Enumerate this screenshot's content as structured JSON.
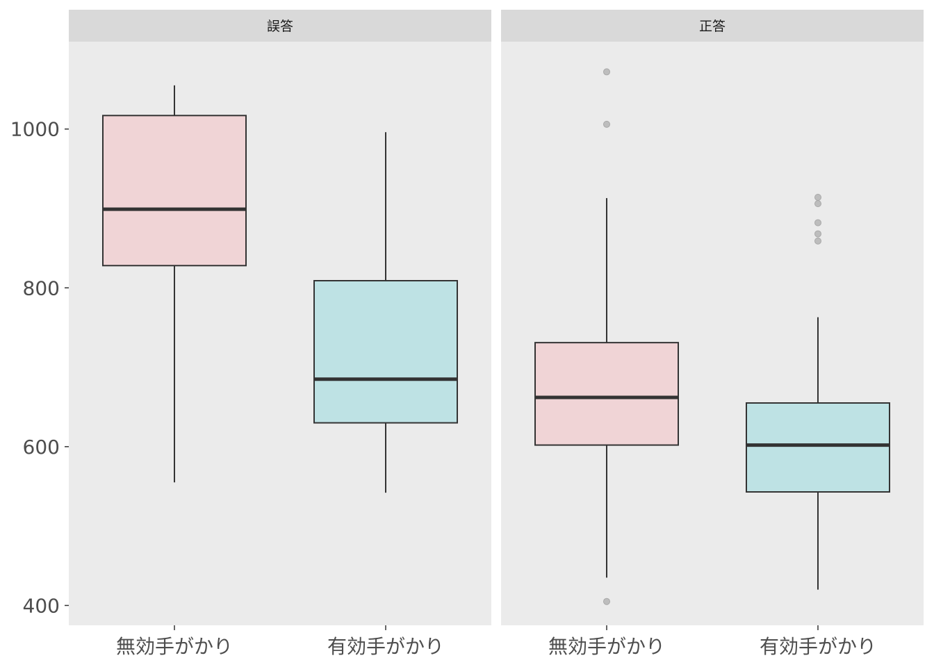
{
  "chart_data": {
    "type": "boxplot",
    "title": "",
    "xlabel": "",
    "ylabel": "",
    "ylim": [
      375,
      1110
    ],
    "y_ticks": [
      400,
      600,
      800,
      1000
    ],
    "categories": [
      "無効手がかり",
      "有効手がかり"
    ],
    "fill_colors": {
      "無効手がかり": "#f0d4d6",
      "有効手がかり": "#bee2e4"
    },
    "outlier_color": "#bdbdbd",
    "grid": false,
    "legend": "none",
    "panels": [
      {
        "label": "誤答",
        "boxes": [
          {
            "category": "無効手がかり",
            "whisker_low": 555,
            "q1": 828,
            "median": 899,
            "q3": 1017,
            "whisker_high": 1055,
            "outliers": []
          },
          {
            "category": "有効手がかり",
            "whisker_low": 542,
            "q1": 630,
            "median": 685,
            "q3": 809,
            "whisker_high": 996,
            "outliers": []
          }
        ]
      },
      {
        "label": "正答",
        "boxes": [
          {
            "category": "無効手がかり",
            "whisker_low": 435,
            "q1": 602,
            "median": 662,
            "q3": 731,
            "whisker_high": 913,
            "outliers": [
              1072,
              1006,
              405
            ]
          },
          {
            "category": "有効手がかり",
            "whisker_low": 420,
            "q1": 543,
            "median": 602,
            "q3": 655,
            "whisker_high": 763,
            "outliers": [
              914,
              906,
              882,
              868,
              859
            ]
          }
        ]
      }
    ]
  }
}
